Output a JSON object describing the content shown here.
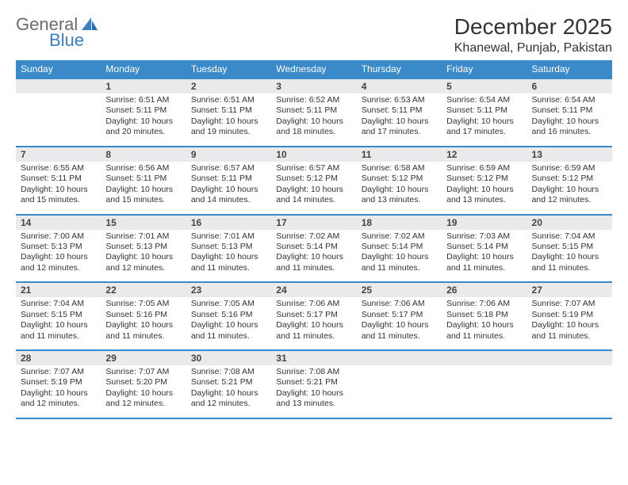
{
  "brand": {
    "part1": "General",
    "part2": "Blue"
  },
  "title": "December 2025",
  "location": "Khanewal, Punjab, Pakistan",
  "colors": {
    "header_bg": "#3a89c9",
    "header_text": "#ffffff",
    "daynum_bg": "#e9eaec",
    "rule": "#3a89c9",
    "logo_gray": "#6b6b6b",
    "logo_blue": "#3a7fc4"
  },
  "daysOfWeek": [
    "Sunday",
    "Monday",
    "Tuesday",
    "Wednesday",
    "Thursday",
    "Friday",
    "Saturday"
  ],
  "weeks": [
    [
      null,
      {
        "n": "1",
        "sr": "Sunrise: 6:51 AM",
        "ss": "Sunset: 5:11 PM",
        "dl1": "Daylight: 10 hours",
        "dl2": "and 20 minutes."
      },
      {
        "n": "2",
        "sr": "Sunrise: 6:51 AM",
        "ss": "Sunset: 5:11 PM",
        "dl1": "Daylight: 10 hours",
        "dl2": "and 19 minutes."
      },
      {
        "n": "3",
        "sr": "Sunrise: 6:52 AM",
        "ss": "Sunset: 5:11 PM",
        "dl1": "Daylight: 10 hours",
        "dl2": "and 18 minutes."
      },
      {
        "n": "4",
        "sr": "Sunrise: 6:53 AM",
        "ss": "Sunset: 5:11 PM",
        "dl1": "Daylight: 10 hours",
        "dl2": "and 17 minutes."
      },
      {
        "n": "5",
        "sr": "Sunrise: 6:54 AM",
        "ss": "Sunset: 5:11 PM",
        "dl1": "Daylight: 10 hours",
        "dl2": "and 17 minutes."
      },
      {
        "n": "6",
        "sr": "Sunrise: 6:54 AM",
        "ss": "Sunset: 5:11 PM",
        "dl1": "Daylight: 10 hours",
        "dl2": "and 16 minutes."
      }
    ],
    [
      {
        "n": "7",
        "sr": "Sunrise: 6:55 AM",
        "ss": "Sunset: 5:11 PM",
        "dl1": "Daylight: 10 hours",
        "dl2": "and 15 minutes."
      },
      {
        "n": "8",
        "sr": "Sunrise: 6:56 AM",
        "ss": "Sunset: 5:11 PM",
        "dl1": "Daylight: 10 hours",
        "dl2": "and 15 minutes."
      },
      {
        "n": "9",
        "sr": "Sunrise: 6:57 AM",
        "ss": "Sunset: 5:11 PM",
        "dl1": "Daylight: 10 hours",
        "dl2": "and 14 minutes."
      },
      {
        "n": "10",
        "sr": "Sunrise: 6:57 AM",
        "ss": "Sunset: 5:12 PM",
        "dl1": "Daylight: 10 hours",
        "dl2": "and 14 minutes."
      },
      {
        "n": "11",
        "sr": "Sunrise: 6:58 AM",
        "ss": "Sunset: 5:12 PM",
        "dl1": "Daylight: 10 hours",
        "dl2": "and 13 minutes."
      },
      {
        "n": "12",
        "sr": "Sunrise: 6:59 AM",
        "ss": "Sunset: 5:12 PM",
        "dl1": "Daylight: 10 hours",
        "dl2": "and 13 minutes."
      },
      {
        "n": "13",
        "sr": "Sunrise: 6:59 AM",
        "ss": "Sunset: 5:12 PM",
        "dl1": "Daylight: 10 hours",
        "dl2": "and 12 minutes."
      }
    ],
    [
      {
        "n": "14",
        "sr": "Sunrise: 7:00 AM",
        "ss": "Sunset: 5:13 PM",
        "dl1": "Daylight: 10 hours",
        "dl2": "and 12 minutes."
      },
      {
        "n": "15",
        "sr": "Sunrise: 7:01 AM",
        "ss": "Sunset: 5:13 PM",
        "dl1": "Daylight: 10 hours",
        "dl2": "and 12 minutes."
      },
      {
        "n": "16",
        "sr": "Sunrise: 7:01 AM",
        "ss": "Sunset: 5:13 PM",
        "dl1": "Daylight: 10 hours",
        "dl2": "and 11 minutes."
      },
      {
        "n": "17",
        "sr": "Sunrise: 7:02 AM",
        "ss": "Sunset: 5:14 PM",
        "dl1": "Daylight: 10 hours",
        "dl2": "and 11 minutes."
      },
      {
        "n": "18",
        "sr": "Sunrise: 7:02 AM",
        "ss": "Sunset: 5:14 PM",
        "dl1": "Daylight: 10 hours",
        "dl2": "and 11 minutes."
      },
      {
        "n": "19",
        "sr": "Sunrise: 7:03 AM",
        "ss": "Sunset: 5:14 PM",
        "dl1": "Daylight: 10 hours",
        "dl2": "and 11 minutes."
      },
      {
        "n": "20",
        "sr": "Sunrise: 7:04 AM",
        "ss": "Sunset: 5:15 PM",
        "dl1": "Daylight: 10 hours",
        "dl2": "and 11 minutes."
      }
    ],
    [
      {
        "n": "21",
        "sr": "Sunrise: 7:04 AM",
        "ss": "Sunset: 5:15 PM",
        "dl1": "Daylight: 10 hours",
        "dl2": "and 11 minutes."
      },
      {
        "n": "22",
        "sr": "Sunrise: 7:05 AM",
        "ss": "Sunset: 5:16 PM",
        "dl1": "Daylight: 10 hours",
        "dl2": "and 11 minutes."
      },
      {
        "n": "23",
        "sr": "Sunrise: 7:05 AM",
        "ss": "Sunset: 5:16 PM",
        "dl1": "Daylight: 10 hours",
        "dl2": "and 11 minutes."
      },
      {
        "n": "24",
        "sr": "Sunrise: 7:06 AM",
        "ss": "Sunset: 5:17 PM",
        "dl1": "Daylight: 10 hours",
        "dl2": "and 11 minutes."
      },
      {
        "n": "25",
        "sr": "Sunrise: 7:06 AM",
        "ss": "Sunset: 5:17 PM",
        "dl1": "Daylight: 10 hours",
        "dl2": "and 11 minutes."
      },
      {
        "n": "26",
        "sr": "Sunrise: 7:06 AM",
        "ss": "Sunset: 5:18 PM",
        "dl1": "Daylight: 10 hours",
        "dl2": "and 11 minutes."
      },
      {
        "n": "27",
        "sr": "Sunrise: 7:07 AM",
        "ss": "Sunset: 5:19 PM",
        "dl1": "Daylight: 10 hours",
        "dl2": "and 11 minutes."
      }
    ],
    [
      {
        "n": "28",
        "sr": "Sunrise: 7:07 AM",
        "ss": "Sunset: 5:19 PM",
        "dl1": "Daylight: 10 hours",
        "dl2": "and 12 minutes."
      },
      {
        "n": "29",
        "sr": "Sunrise: 7:07 AM",
        "ss": "Sunset: 5:20 PM",
        "dl1": "Daylight: 10 hours",
        "dl2": "and 12 minutes."
      },
      {
        "n": "30",
        "sr": "Sunrise: 7:08 AM",
        "ss": "Sunset: 5:21 PM",
        "dl1": "Daylight: 10 hours",
        "dl2": "and 12 minutes."
      },
      {
        "n": "31",
        "sr": "Sunrise: 7:08 AM",
        "ss": "Sunset: 5:21 PM",
        "dl1": "Daylight: 10 hours",
        "dl2": "and 13 minutes."
      },
      null,
      null,
      null
    ]
  ]
}
